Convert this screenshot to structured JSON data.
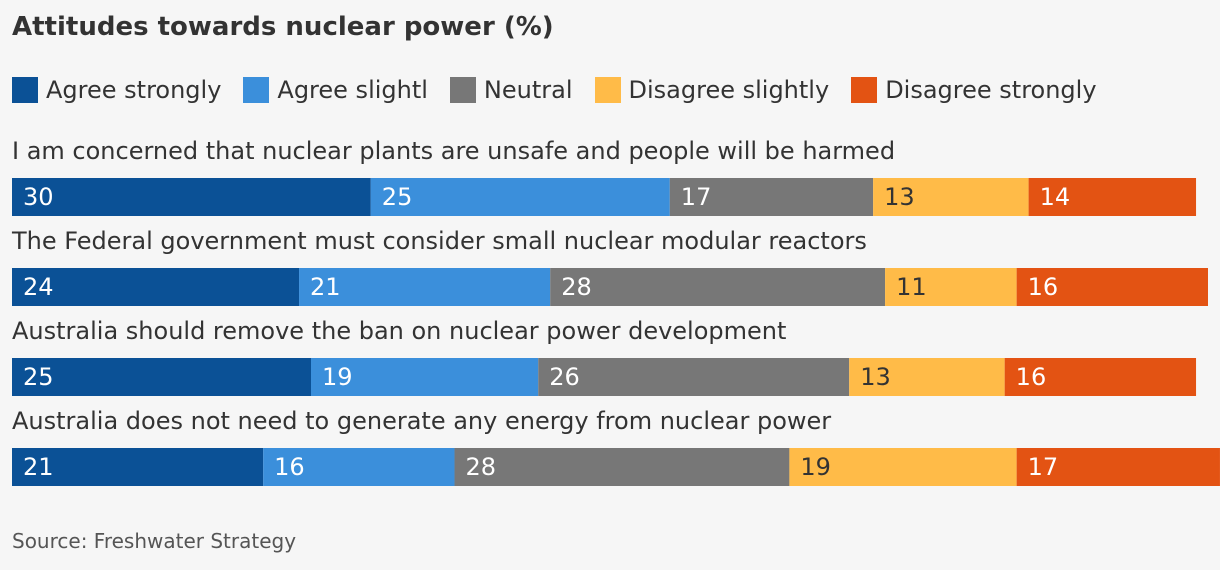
{
  "title": "Attitudes towards nuclear power (%)",
  "source": "Source: Freshwater Strategy",
  "chart_data": {
    "type": "bar",
    "orientation": "horizontal",
    "stacked": true,
    "title": "Attitudes towards nuclear power (%)",
    "legend": "top",
    "grid": false,
    "categories": [
      "I am concerned that nuclear plants are unsafe and people will be harmed",
      "The Federal government must consider small nuclear modular reactors",
      "Australia should remove the ban on nuclear power development",
      "Australia does not need to generate any energy from nuclear power"
    ],
    "series": [
      {
        "name": "Agree strongly",
        "color": "#0b5196",
        "values": [
          30,
          24,
          25,
          21
        ]
      },
      {
        "name": "Agree slightl",
        "color": "#3b8fdb",
        "values": [
          25,
          21,
          19,
          16
        ]
      },
      {
        "name": "Neutral",
        "color": "#777777",
        "values": [
          17,
          28,
          26,
          28
        ]
      },
      {
        "name": "Disagree slightly",
        "color": "#ffbb48",
        "values": [
          13,
          11,
          13,
          19
        ]
      },
      {
        "name": "Disagree strongly",
        "color": "#e35313",
        "values": [
          14,
          16,
          16,
          17
        ]
      }
    ],
    "xlim": [
      0,
      100
    ]
  }
}
